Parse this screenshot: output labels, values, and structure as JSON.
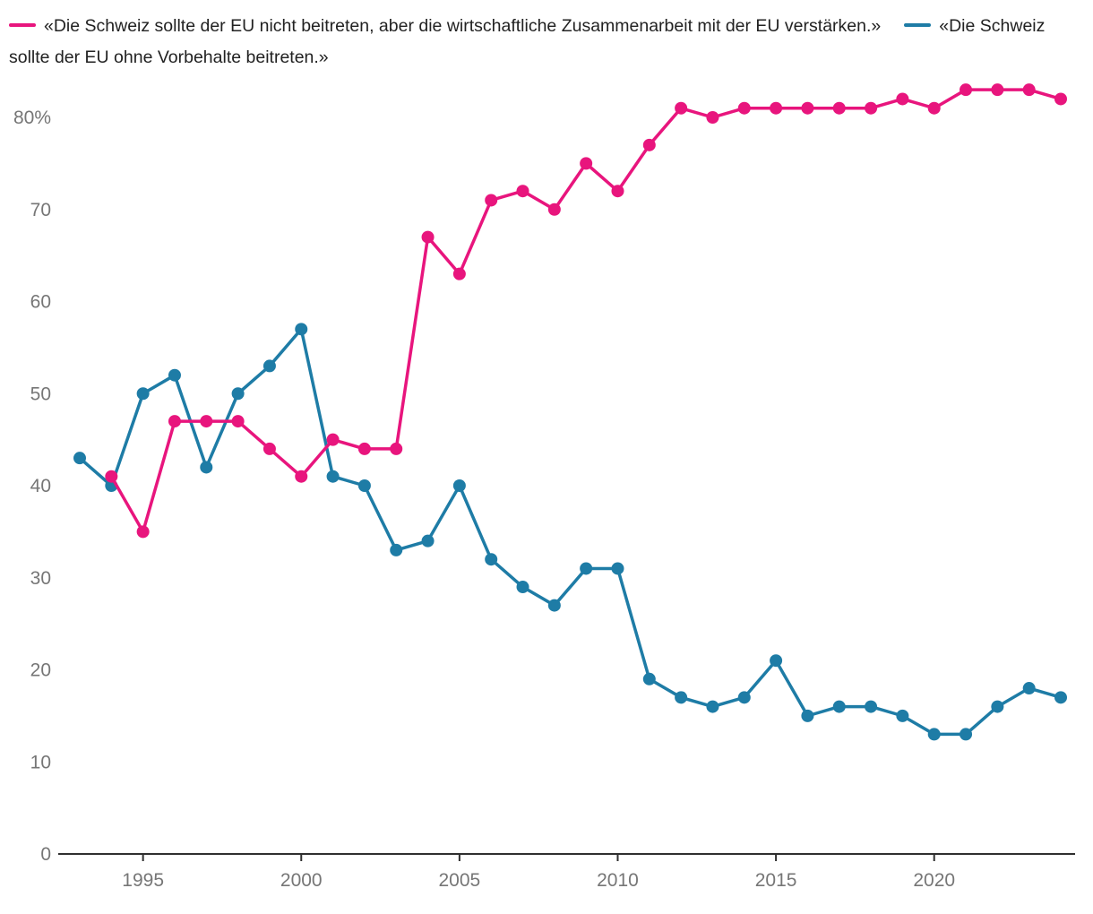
{
  "legend": {
    "items": [
      {
        "label": "«Die Schweiz sollte der EU nicht beitreten, aber die wirtschaftliche Zusammenarbeit mit der EU verstärken.»",
        "color": "#e8157d"
      },
      {
        "label": "«Die Schweiz sollte der EU ohne Vorbehalte beitreten.»",
        "color": "#1e7ca6"
      }
    ]
  },
  "chart_data": {
    "type": "line",
    "x": [
      1993,
      1994,
      1995,
      1996,
      1997,
      1998,
      1999,
      2000,
      2001,
      2002,
      2003,
      2004,
      2005,
      2006,
      2007,
      2008,
      2009,
      2010,
      2011,
      2012,
      2013,
      2014,
      2015,
      2016,
      2017,
      2018,
      2019,
      2020,
      2021,
      2022,
      2023,
      2024
    ],
    "series": [
      {
        "name": "«Die Schweiz sollte der EU nicht beitreten, aber die wirtschaftliche Zusammenarbeit mit der EU verstärken.»",
        "color": "#e8157d",
        "values": [
          null,
          41,
          35,
          47,
          47,
          47,
          44,
          41,
          45,
          44,
          44,
          67,
          63,
          71,
          72,
          70,
          75,
          72,
          77,
          81,
          80,
          81,
          81,
          81,
          81,
          81,
          82,
          81,
          83,
          83,
          83,
          82
        ]
      },
      {
        "name": "«Die Schweiz sollte der EU ohne Vorbehalte beitreten.»",
        "color": "#1e7ca6",
        "values": [
          43,
          40,
          50,
          52,
          42,
          50,
          53,
          57,
          41,
          40,
          33,
          34,
          40,
          32,
          29,
          27,
          31,
          31,
          19,
          17,
          16,
          17,
          21,
          15,
          16,
          16,
          15,
          13,
          13,
          16,
          18,
          17
        ]
      }
    ],
    "xticks": [
      1995,
      2000,
      2005,
      2010,
      2015,
      2020
    ],
    "yticks": [
      0,
      10,
      20,
      30,
      40,
      50,
      60,
      70,
      80
    ],
    "ytick_labels": [
      "0",
      "10",
      "20",
      "30",
      "40",
      "50",
      "60",
      "70",
      "80%"
    ],
    "ylim": [
      0,
      80
    ],
    "xlim": [
      1993,
      2024
    ],
    "grid": false,
    "legend_position": "top",
    "axis_color": "#2f2f2f",
    "tick_text_color": "#767676"
  }
}
